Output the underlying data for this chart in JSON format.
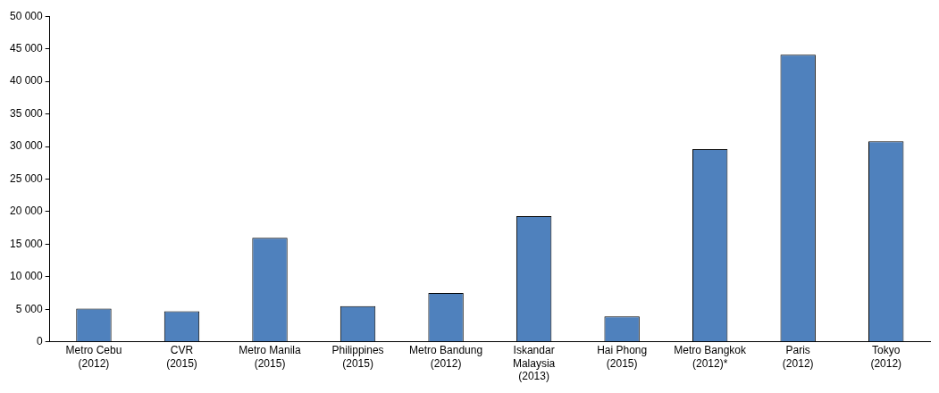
{
  "chart_data": {
    "type": "bar",
    "categories": [
      "Metro Cebu (2012)",
      "CVR (2015)",
      "Metro Manila (2015)",
      "Philippines (2015)",
      "Metro Bandung (2012)",
      "Iskandar Malaysia (2013)",
      "Hai Phong (2015)",
      "Metro Bangkok (2012)*",
      "Paris (2012)",
      "Tokyo (2012)"
    ],
    "values": [
      5100,
      4700,
      16000,
      5500,
      7500,
      19300,
      3900,
      29600,
      44100,
      30800
    ],
    "color": "#4f81bd",
    "ylim": [
      0,
      50000
    ],
    "yticks": [
      {
        "value": 0,
        "label": "0"
      },
      {
        "value": 5000,
        "label": "5 000"
      },
      {
        "value": 10000,
        "label": "10 000"
      },
      {
        "value": 15000,
        "label": "15 000"
      },
      {
        "value": 20000,
        "label": "20 000"
      },
      {
        "value": 25000,
        "label": "25 000"
      },
      {
        "value": 30000,
        "label": "30 000"
      },
      {
        "value": 35000,
        "label": "35 000"
      },
      {
        "value": 40000,
        "label": "40 000"
      },
      {
        "value": 45000,
        "label": "45 000"
      },
      {
        "value": 50000,
        "label": "50 000"
      }
    ],
    "grid": false,
    "legend": false
  }
}
